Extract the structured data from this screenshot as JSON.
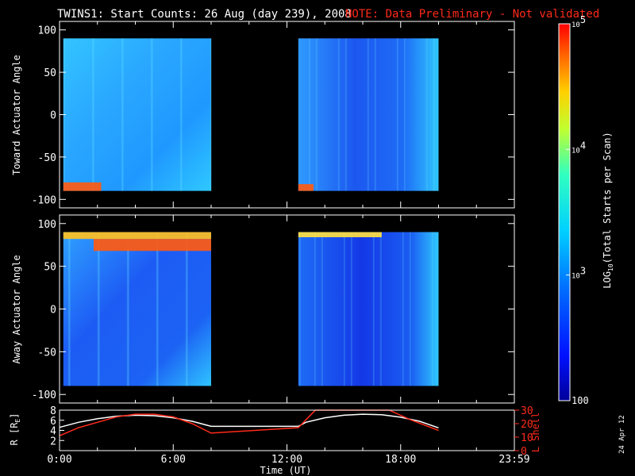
{
  "header": {
    "title": "TWINS1: Start Counts: 26 Aug (day 239), 2008",
    "note": "NOTE: Data Preliminary - Not validated",
    "note_color": "#ff2a1a"
  },
  "footer": {
    "date_stamp": "24 Apr 12"
  },
  "chart_data": [
    {
      "type": "heatmap",
      "panel": "toward",
      "ylabel": "Toward Actuator Angle",
      "ylim": [
        -110,
        110
      ],
      "yticks": [
        100,
        50,
        0,
        -50,
        -100
      ],
      "xlim": [
        0,
        24
      ],
      "data_blocks": [
        {
          "t_start": 0.2,
          "t_end": 8.0,
          "angle_min": -90,
          "angle_max": 90
        },
        {
          "t_start": 12.6,
          "t_end": 20.0,
          "angle_min": -90,
          "angle_max": 90
        }
      ],
      "features": [
        {
          "desc": "high counts",
          "t_start": 0.2,
          "t_end": 2.2,
          "angle_min": -90,
          "angle_max": -80,
          "log_counts": 4.7
        },
        {
          "desc": "high counts",
          "t_start": 12.6,
          "t_end": 13.4,
          "angle_min": -90,
          "angle_max": -82,
          "log_counts": 4.6
        }
      ]
    },
    {
      "type": "heatmap",
      "panel": "away",
      "ylabel": "Away Actuator Angle",
      "ylim": [
        -110,
        110
      ],
      "yticks": [
        100,
        50,
        0,
        -50,
        -100
      ],
      "xlim": [
        0,
        24
      ],
      "data_blocks": [
        {
          "t_start": 0.2,
          "t_end": 8.0,
          "angle_min": -90,
          "angle_max": 90
        },
        {
          "t_start": 12.6,
          "t_end": 20.0,
          "angle_min": -90,
          "angle_max": 90
        }
      ],
      "features": [
        {
          "desc": "high counts",
          "t_start": 1.8,
          "t_end": 8.0,
          "angle_min": 68,
          "angle_max": 82,
          "log_counts": 4.7
        },
        {
          "desc": "high counts",
          "t_start": 0.2,
          "t_end": 8.0,
          "angle_min": 82,
          "angle_max": 90,
          "log_counts": 4.4
        },
        {
          "desc": "high counts",
          "t_start": 12.6,
          "t_end": 17.0,
          "angle_min": 84,
          "angle_max": 90,
          "log_counts": 4.3
        }
      ]
    },
    {
      "type": "line",
      "panel": "orbit",
      "xlabel": "Time (UT)",
      "xlim": [
        0,
        24
      ],
      "xticks": [
        "0:00",
        "6:00",
        "12:00",
        "18:00",
        "23:59"
      ],
      "xtick_values": [
        0,
        6,
        12,
        18,
        24
      ],
      "left_axis": {
        "label": "R [R",
        "label_sub": "E",
        "label_end": "]",
        "ylim": [
          0,
          8
        ],
        "yticks": [
          "8",
          "6",
          "4",
          "2"
        ],
        "ytick_values": [
          8,
          6,
          4,
          2
        ]
      },
      "right_axis": {
        "label": "L Shell",
        "ylim": [
          0,
          30
        ],
        "yticks": [
          "30",
          "20",
          "10",
          "0"
        ],
        "ytick_values": [
          30,
          20,
          10,
          0
        ],
        "color": "#ff2a1a"
      },
      "series": [
        {
          "axis": "left",
          "color": "#ffffff",
          "x": [
            0,
            1,
            2,
            3,
            4,
            5,
            6,
            7,
            8,
            12.6,
            13,
            14,
            15,
            16,
            17,
            18,
            19,
            20
          ],
          "y": [
            4.6,
            5.6,
            6.3,
            6.8,
            7.0,
            6.9,
            6.5,
            5.8,
            4.8,
            4.8,
            5.6,
            6.5,
            7.0,
            7.2,
            7.1,
            6.6,
            5.8,
            4.5
          ]
        },
        {
          "axis": "right",
          "color": "#ff2a1a",
          "x": [
            0,
            1,
            2,
            3,
            4,
            5,
            6,
            7,
            8,
            12.6,
            13.5,
            17.4,
            18.5,
            20
          ],
          "y": [
            11,
            17,
            21,
            25,
            27,
            27,
            25,
            20,
            13,
            17,
            30,
            30,
            23,
            15
          ]
        }
      ]
    },
    {
      "type": "heatmap",
      "panel": "colorbar",
      "label": "LOG",
      "label_sub": "10",
      "label_end": "(Total Starts per Scan)",
      "scale": "log",
      "range": [
        100,
        100000
      ],
      "ticks": [
        {
          "value": 100,
          "text": "100"
        },
        {
          "value": 1000,
          "base": "10",
          "exp": "3"
        },
        {
          "value": 10000,
          "base": "10",
          "exp": "4"
        },
        {
          "value": 100000,
          "base": "10",
          "exp": "5"
        }
      ]
    }
  ]
}
